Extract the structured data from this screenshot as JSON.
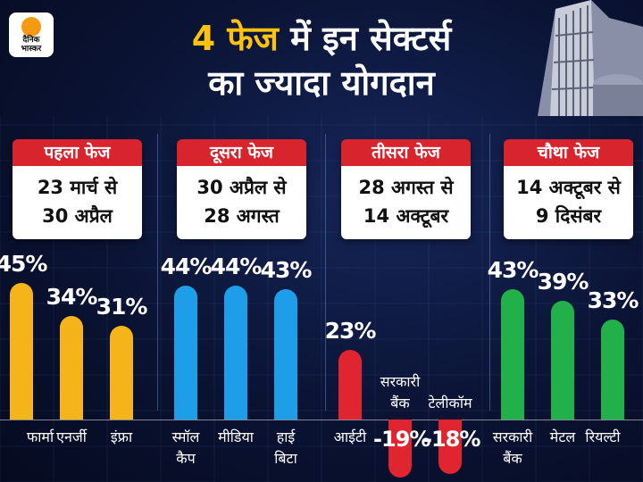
{
  "logo_text": [
    "दैनिक",
    "भास्कर"
  ],
  "title": [
    "4 फेज",
    "में इन सेक्टर्स",
    "का ज्यादा योगदान"
  ],
  "chart_data": {
    "type": "bar",
    "title": "4 फेज में इन सेक्टर्स का ज्यादा योगदान",
    "unit": "%",
    "ylim": [
      -20,
      45
    ],
    "phases": [
      {
        "name": "पहला फेज",
        "dates": [
          "23 मार्च से",
          "30 अप्रैल"
        ],
        "color": "#f5b41a",
        "categories": [
          [
            "फार्मा"
          ],
          [
            "एनर्जी"
          ],
          [
            "इंफ्रा"
          ]
        ],
        "values": [
          45,
          34,
          31
        ]
      },
      {
        "name": "दूसरा फेज",
        "dates": [
          "30 अप्रैल से",
          "28 अगस्त"
        ],
        "color": "#1e9ee8",
        "categories": [
          [
            "स्मॉल",
            "कैप"
          ],
          [
            "मीडिया"
          ],
          [
            "हाई",
            "बिटा"
          ]
        ],
        "values": [
          44,
          44,
          43
        ]
      },
      {
        "name": "तीसरा फेज",
        "dates": [
          "28 अगस्त से",
          "14 अक्टूबर"
        ],
        "color": "#e02430",
        "categories": [
          [
            "आईटी"
          ],
          [
            "सरकारी",
            "बैंक"
          ],
          [
            "टेलीकॉम"
          ]
        ],
        "values": [
          23,
          -19,
          -18
        ]
      },
      {
        "name": "चौथा फेज",
        "dates": [
          "14 अक्टूबर से",
          "9 दिसंबर"
        ],
        "color": "#22b04b",
        "categories": [
          [
            "सरकारी",
            "बैंक"
          ],
          [
            "मेटल"
          ],
          [
            "रियल्टी"
          ]
        ],
        "values": [
          43,
          39,
          33
        ]
      }
    ]
  }
}
